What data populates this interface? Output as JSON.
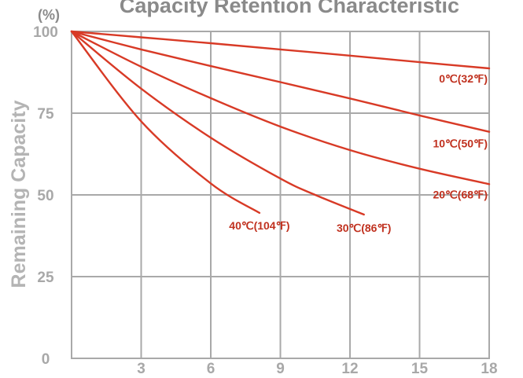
{
  "chart_data": {
    "type": "line",
    "title": "Capacity Retention Characteristic",
    "ylabel": "Remaining Capacity",
    "y_unit": "(%)",
    "xlabel": "",
    "xlim": [
      0,
      18
    ],
    "ylim": [
      0,
      100
    ],
    "x_ticks": [
      3,
      6,
      9,
      12,
      15,
      18
    ],
    "y_ticks": [
      0,
      25,
      50,
      75,
      100
    ],
    "grid": true,
    "colors": {
      "series": "#d83a26",
      "labels": "#c0311f",
      "grid": "#a9a9a9",
      "text": "#a8a8a8"
    },
    "series": [
      {
        "name": "0℃(32℉)",
        "x": [
          0,
          3,
          6,
          9,
          12,
          15,
          18
        ],
        "y": [
          100,
          98.2,
          96.4,
          94.5,
          92.6,
          90.6,
          88.7
        ]
      },
      {
        "name": "10℃(50℉)",
        "x": [
          0,
          3,
          6,
          9,
          12,
          15,
          18
        ],
        "y": [
          100,
          94.5,
          89.4,
          84.5,
          79.5,
          74.3,
          69.3
        ]
      },
      {
        "name": "20℃(68℉)",
        "x": [
          0,
          3,
          6,
          9,
          12,
          15,
          18
        ],
        "y": [
          100,
          89.2,
          79.6,
          70.9,
          63.7,
          58,
          53.3
        ]
      },
      {
        "name": "30℃(86℉)",
        "x": [
          0,
          3,
          6,
          9,
          10.5,
          12.6
        ],
        "y": [
          100,
          82.5,
          67.5,
          55,
          50,
          44
        ]
      },
      {
        "name": "40℃(104℉)",
        "x": [
          0,
          3,
          6,
          8.1
        ],
        "y": [
          100,
          72.5,
          53.5,
          44.5
        ]
      }
    ]
  }
}
